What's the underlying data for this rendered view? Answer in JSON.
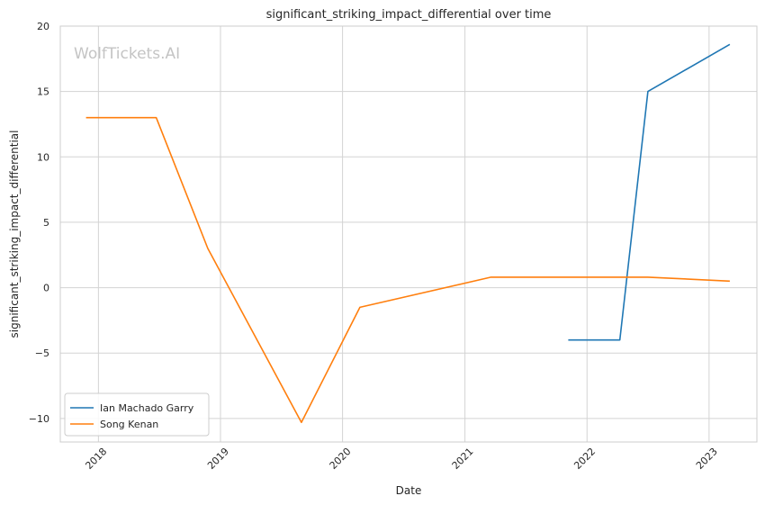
{
  "chart_data": {
    "type": "line",
    "title": "significant_striking_impact_differential over time",
    "xlabel": "Date",
    "ylabel": "significant_striking_impact_differential",
    "watermark": "WolfTickets.AI",
    "x_ticks": [
      "2018",
      "2019",
      "2020",
      "2021",
      "2022",
      "2023"
    ],
    "y_ticks": [
      "20",
      "15",
      "10",
      "5",
      "0",
      "−5",
      "−10"
    ],
    "xlim": [
      "2017-09-09",
      "2023-05-24"
    ],
    "ylim": [
      -11.8,
      20
    ],
    "grid": true,
    "legend_position": "lower-left",
    "series": [
      {
        "name": "Ian Machado Garry",
        "color": "#1f77b4",
        "points": [
          [
            "2021-11-06",
            -4
          ],
          [
            "2022-04-09",
            -4
          ],
          [
            "2022-07-02",
            15
          ],
          [
            "2023-03-04",
            18.6
          ]
        ]
      },
      {
        "name": "Song Kenan",
        "color": "#ff7f0e",
        "points": [
          [
            "2017-11-25",
            13
          ],
          [
            "2018-06-23",
            13
          ],
          [
            "2018-11-24",
            3
          ],
          [
            "2019-08-31",
            -10.3
          ],
          [
            "2020-02-22",
            -1.5
          ],
          [
            "2021-03-20",
            0.8
          ],
          [
            "2022-07-02",
            0.8
          ],
          [
            "2023-03-04",
            0.5
          ]
        ]
      }
    ]
  }
}
